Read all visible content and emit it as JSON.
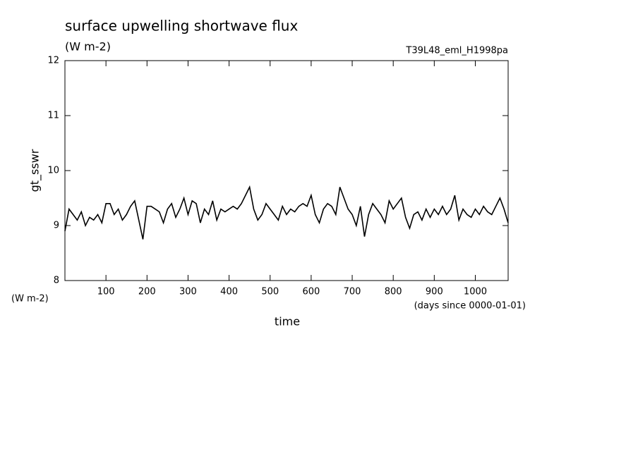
{
  "chart_data": {
    "type": "line",
    "title": "surface upwelling shortwave flux",
    "subtitle": "(W m-2)",
    "run_label": "T39L48_eml_H1998pa",
    "y_label": "gt_sswr",
    "y_units": "(W m-2)",
    "x_label": "time",
    "x_units": "(days since 0000-01-01)",
    "x": [
      0,
      10,
      20,
      30,
      40,
      50,
      60,
      70,
      80,
      90,
      100,
      110,
      120,
      130,
      140,
      150,
      160,
      170,
      180,
      190,
      200,
      210,
      220,
      230,
      240,
      250,
      260,
      270,
      280,
      290,
      300,
      310,
      320,
      330,
      340,
      350,
      360,
      370,
      380,
      390,
      400,
      410,
      420,
      430,
      440,
      450,
      460,
      470,
      480,
      490,
      500,
      510,
      520,
      530,
      540,
      550,
      560,
      570,
      580,
      590,
      600,
      610,
      620,
      630,
      640,
      650,
      660,
      670,
      680,
      690,
      700,
      710,
      720,
      730,
      740,
      750,
      760,
      770,
      780,
      790,
      800,
      810,
      820,
      830,
      840,
      850,
      860,
      870,
      880,
      890,
      900,
      910,
      920,
      930,
      940,
      950,
      960,
      970,
      980,
      990,
      1000,
      1010,
      1020,
      1030,
      1040,
      1050,
      1060,
      1070,
      1080
    ],
    "series": [
      {
        "name": "gt_sswr",
        "color": "#000000",
        "values": [
          8.9,
          9.3,
          9.2,
          9.1,
          9.25,
          9.0,
          9.15,
          9.1,
          9.2,
          9.05,
          9.4,
          9.4,
          9.2,
          9.3,
          9.1,
          9.2,
          9.35,
          9.45,
          9.1,
          8.75,
          9.35,
          9.35,
          9.3,
          9.25,
          9.05,
          9.3,
          9.4,
          9.15,
          9.3,
          9.5,
          9.2,
          9.45,
          9.4,
          9.05,
          9.3,
          9.2,
          9.45,
          9.1,
          9.3,
          9.25,
          9.3,
          9.35,
          9.3,
          9.4,
          9.55,
          9.7,
          9.3,
          9.1,
          9.2,
          9.4,
          9.3,
          9.2,
          9.1,
          9.35,
          9.2,
          9.3,
          9.25,
          9.35,
          9.4,
          9.35,
          9.55,
          9.2,
          9.05,
          9.3,
          9.4,
          9.35,
          9.2,
          9.7,
          9.5,
          9.3,
          9.2,
          9.0,
          9.35,
          8.8,
          9.2,
          9.4,
          9.3,
          9.2,
          9.05,
          9.45,
          9.3,
          9.4,
          9.5,
          9.15,
          8.95,
          9.2,
          9.25,
          9.1,
          9.3,
          9.15,
          9.3,
          9.2,
          9.35,
          9.2,
          9.3,
          9.55,
          9.1,
          9.3,
          9.2,
          9.15,
          9.3,
          9.2,
          9.35,
          9.25,
          9.2,
          9.35,
          9.5,
          9.3,
          9.05
        ]
      }
    ],
    "xlim": [
      0,
      1080
    ],
    "xticks": [
      100,
      200,
      300,
      400,
      500,
      600,
      700,
      800,
      900,
      1000
    ],
    "ylim": [
      8,
      12
    ],
    "yticks": [
      8,
      9,
      10,
      11,
      12
    ]
  }
}
